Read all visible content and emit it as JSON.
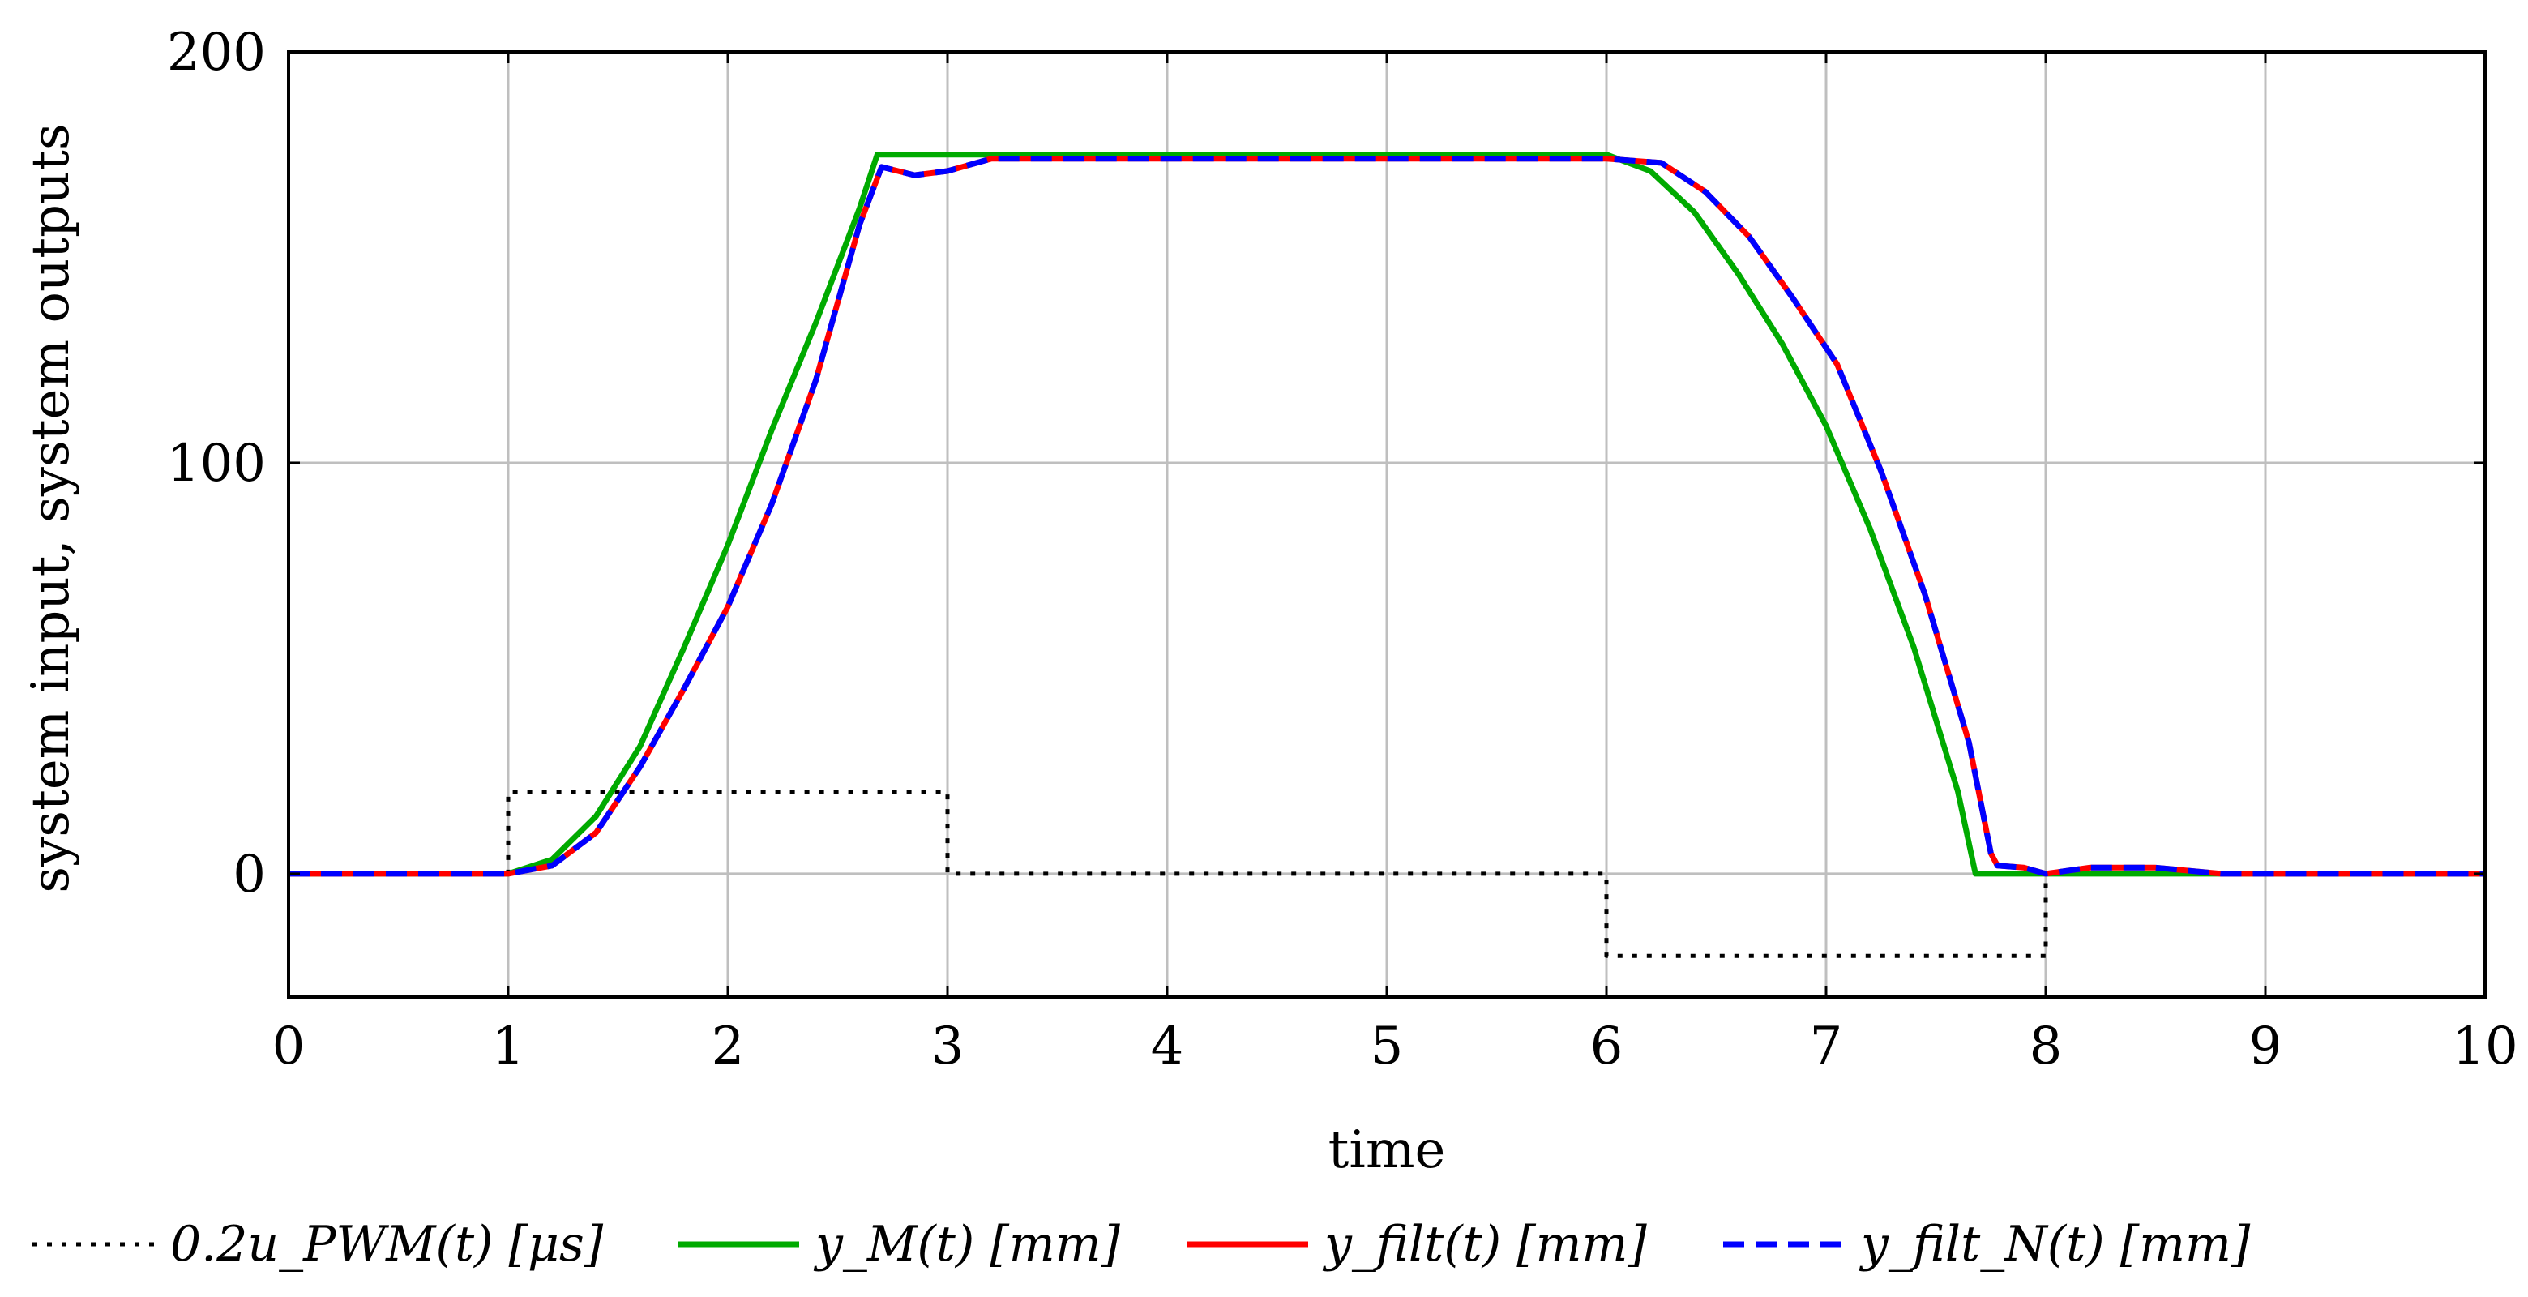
{
  "chart_data": {
    "type": "line",
    "title": "",
    "xlabel": "time",
    "ylabel": "system input, system outputs",
    "xlim": [
      0,
      10
    ],
    "ylim": [
      -30,
      200
    ],
    "xticks": [
      "0",
      "1",
      "2",
      "3",
      "4",
      "5",
      "6",
      "7",
      "8",
      "9",
      "10"
    ],
    "yticks": [
      "0",
      "100",
      "200"
    ],
    "grid": true,
    "legend_position": "bottom",
    "series": [
      {
        "name": "0.2u_PWM(t) [μs]",
        "style": "dotted",
        "color": "#000000",
        "x": [
          0,
          1,
          1,
          3,
          3,
          6,
          6,
          8,
          8,
          10
        ],
        "y": [
          0,
          0,
          20,
          20,
          0,
          0,
          -20,
          -20,
          0,
          0
        ]
      },
      {
        "name": "y_M(t) [mm]",
        "style": "solid",
        "color": "#00aa00",
        "x": [
          0,
          1,
          1.2,
          1.4,
          1.6,
          1.8,
          2.0,
          2.2,
          2.4,
          2.6,
          2.68,
          3.0,
          4.0,
          5.0,
          6.0,
          6.2,
          6.4,
          6.6,
          6.8,
          7.0,
          7.2,
          7.4,
          7.6,
          7.68,
          8.0,
          9.0,
          10.0
        ],
        "y": [
          0,
          0,
          3.5,
          14,
          31,
          55,
          80,
          108,
          134,
          162,
          175,
          175,
          175,
          175,
          175,
          171,
          161,
          146,
          129,
          109,
          84,
          55,
          20,
          0,
          0,
          0,
          0
        ]
      },
      {
        "name": "y_filt(t) [mm]",
        "style": "solid",
        "color": "#ff0000",
        "x": [
          0,
          1,
          1.2,
          1.4,
          1.6,
          1.8,
          2.0,
          2.2,
          2.4,
          2.6,
          2.7,
          2.85,
          3.0,
          3.2,
          4.0,
          5.0,
          6.0,
          6.25,
          6.45,
          6.65,
          6.85,
          7.05,
          7.25,
          7.45,
          7.65,
          7.75,
          7.78,
          7.9,
          8.0,
          8.2,
          8.5,
          8.8,
          9.0,
          10.0
        ],
        "y": [
          0,
          0,
          2,
          10,
          26,
          45,
          65,
          90,
          120,
          158,
          172,
          170,
          171,
          174,
          174,
          174,
          174,
          173,
          166,
          155,
          140,
          124,
          98,
          68,
          32,
          5,
          2,
          1.5,
          0,
          1.5,
          1.5,
          0,
          0,
          0
        ]
      },
      {
        "name": "y_filt_N(t) [mm]",
        "style": "dashed",
        "color": "#0000ff",
        "x": [
          0,
          1,
          1.2,
          1.4,
          1.6,
          1.8,
          2.0,
          2.2,
          2.4,
          2.6,
          2.7,
          2.85,
          3.0,
          3.2,
          4.0,
          5.0,
          6.0,
          6.25,
          6.45,
          6.65,
          6.85,
          7.05,
          7.25,
          7.45,
          7.65,
          7.75,
          7.78,
          7.9,
          8.0,
          8.2,
          8.5,
          8.8,
          9.0,
          10.0
        ],
        "y": [
          0,
          0,
          2,
          10,
          26,
          45,
          65,
          90,
          120,
          158,
          172,
          170,
          171,
          174,
          174,
          174,
          174,
          173,
          166,
          155,
          140,
          124,
          98,
          68,
          32,
          5,
          2,
          1.5,
          0,
          1.5,
          1.5,
          0,
          0,
          0
        ]
      }
    ]
  }
}
